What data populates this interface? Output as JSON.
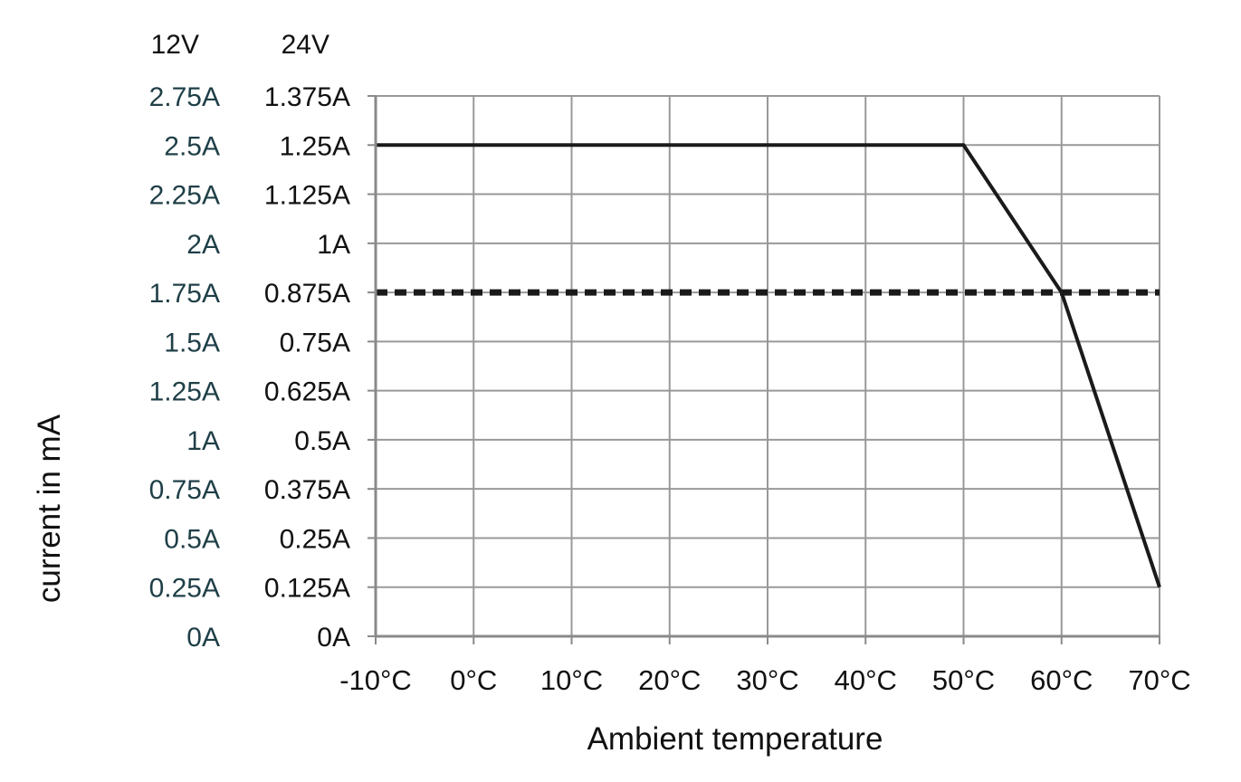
{
  "chart_data": {
    "type": "line",
    "xlabel": "Ambient temperature",
    "ylabel": "current in mA",
    "xlim": [
      -10,
      70
    ],
    "ylim": [
      0,
      2.75
    ],
    "grid": true,
    "x_ticks": [
      -10,
      0,
      10,
      20,
      30,
      40,
      50,
      60,
      70
    ],
    "x_tick_labels": [
      "-10°C",
      "0°C",
      "10°C",
      "20°C",
      "30°C",
      "40°C",
      "50°C",
      "60°C",
      "70°C"
    ],
    "y_ticks": [
      0,
      0.25,
      0.5,
      0.75,
      1,
      1.25,
      1.5,
      1.75,
      2,
      2.25,
      2.5,
      2.75
    ],
    "y_axis_columns": [
      {
        "header": "12V",
        "tick_labels": [
          "0A",
          "0.25A",
          "0.5A",
          "0.75A",
          "1A",
          "1.25A",
          "1.5A",
          "1.75A",
          "2A",
          "2.25A",
          "2.5A",
          "2.75A"
        ]
      },
      {
        "header": "24V",
        "tick_labels": [
          "0A",
          "0.125A",
          "0.25A",
          "0.375A",
          "0.5A",
          "0.625A",
          "0.75A",
          "0.875A",
          "1A",
          "1.125A",
          "1.25A",
          "1.375A"
        ]
      }
    ],
    "series": [
      {
        "style": "solid",
        "color": "#1a1a1a",
        "x": [
          -10,
          50,
          60,
          70
        ],
        "y": [
          2.5,
          2.5,
          1.75,
          0.25
        ]
      },
      {
        "style": "dotted",
        "color": "#1a1a1a",
        "x": [
          -10,
          70
        ],
        "y": [
          1.75,
          1.75
        ]
      }
    ]
  }
}
